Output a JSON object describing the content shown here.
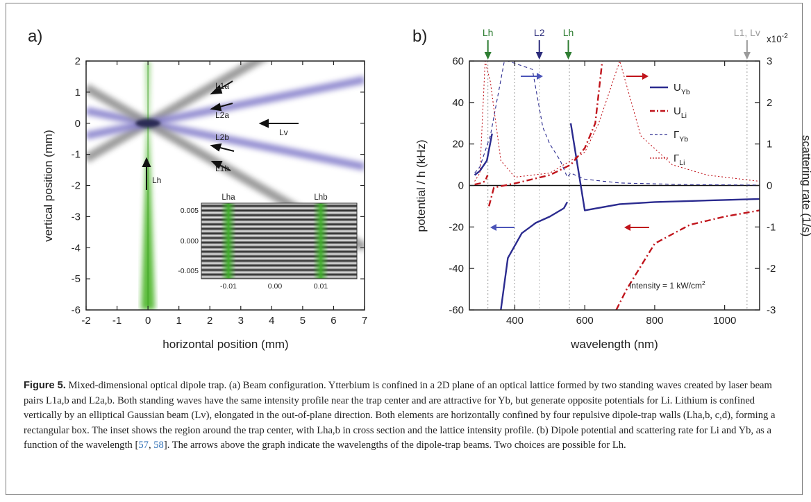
{
  "panel_a": {
    "label": "a)",
    "xlabel": "horizontal position (mm)",
    "ylabel": "vertical position (mm)",
    "xticks": [
      "-2",
      "-1",
      "0",
      "1",
      "2",
      "3",
      "4",
      "5",
      "6",
      "7"
    ],
    "yticks": [
      "2",
      "1",
      "0",
      "-1",
      "-2",
      "-3",
      "-4",
      "-5",
      "-6"
    ],
    "beams": [
      {
        "label": "L1a",
        "slope": 0.57,
        "color": "gray"
      },
      {
        "label": "L2a",
        "slope": 0.2,
        "color": "blue"
      },
      {
        "label": "Lv",
        "slope": 0.0,
        "color": "gray"
      },
      {
        "label": "L2b",
        "slope": -0.2,
        "color": "blue"
      },
      {
        "label": "L1b",
        "slope": -0.57,
        "color": "gray"
      },
      {
        "label": "Lh",
        "slope": null,
        "color": "green"
      }
    ],
    "inset": {
      "labels": [
        "Lha",
        "Lhb"
      ],
      "xticks": [
        "-0.01",
        "0.00",
        "0.01"
      ],
      "yticks": [
        "0.005",
        "0.000",
        "-0.005"
      ]
    }
  },
  "panel_b": {
    "label": "b)",
    "xlabel": "wavelength (nm)",
    "ylabel_left": "potential / h (kHz)",
    "ylabel_right": "scattering rate (1/s)",
    "right_scale": "x10",
    "right_scale_exp": "-2",
    "top_markers": [
      {
        "label": "Lh",
        "wavelength": 323,
        "color": "#2e7d32"
      },
      {
        "label": "L2",
        "wavelength": 470,
        "color": "#2b2b7a"
      },
      {
        "label": "Lh",
        "wavelength": 553,
        "color": "#2e7d32"
      },
      {
        "label": "L1, Lv",
        "wavelength": 1064,
        "color": "#9a9a9a"
      }
    ],
    "legend": [
      {
        "main": "U",
        "sub": "Yb",
        "color": "#2b2b8f",
        "style": "solid"
      },
      {
        "main": "U",
        "sub": "Li",
        "color": "#c0141b",
        "style": "dashdot"
      },
      {
        "main": "Γ",
        "sub": "Yb",
        "color": "#2b2b8f",
        "style": "dash"
      },
      {
        "main": "Γ",
        "sub": "Li",
        "color": "#c0141b",
        "style": "dot"
      }
    ],
    "annotation_main": "Intensity = 1 kW/cm",
    "annotation_sup": "2",
    "xticks": [
      "400",
      "600",
      "800",
      "1000"
    ],
    "yticks_left": [
      "60",
      "40",
      "20",
      "0",
      "-20",
      "-40",
      "-60"
    ],
    "yticks_right": [
      "3",
      "2",
      "1",
      "0",
      "-1",
      "-2",
      "-3"
    ]
  },
  "chart_data": {
    "type": "line",
    "xlabel": "wavelength (nm)",
    "ylabel": "potential / h (kHz)",
    "xlim": [
      270,
      1100
    ],
    "ylim": [
      -60,
      60
    ],
    "y2lim": [
      -3,
      3
    ],
    "y2_scale": "x10^-2",
    "resonances_nm": {
      "Yb": [
        399,
        556
      ],
      "Li": [
        323,
        671
      ]
    },
    "series": [
      {
        "name": "U_Yb",
        "axis": "left",
        "x": [
          285,
          300,
          320,
          335,
          360,
          380,
          420,
          460,
          500,
          540,
          550,
          560,
          600,
          700,
          800,
          900,
          1000,
          1100
        ],
        "y": [
          5,
          7,
          12,
          25,
          -60,
          -35,
          -23,
          -18,
          -15,
          -11,
          -8,
          30,
          -12,
          -9,
          -8,
          -7.5,
          -7,
          -6.5
        ]
      },
      {
        "name": "U_Li",
        "axis": "left",
        "x": [
          285,
          300,
          315,
          322,
          326,
          340,
          400,
          500,
          560,
          600,
          630,
          650,
          690,
          720,
          800,
          900,
          1000,
          1100
        ],
        "y": [
          0.5,
          1,
          2,
          5,
          -10,
          -1,
          1,
          5,
          10,
          18,
          30,
          60,
          -60,
          -50,
          -28,
          -19,
          -15,
          -12
        ]
      },
      {
        "name": "Γ_Yb",
        "axis": "right",
        "x": [
          285,
          300,
          330,
          370,
          380,
          450,
          480,
          500,
          530,
          550,
          560,
          600,
          700,
          900,
          1100
        ],
        "y": [
          0.3,
          0.45,
          1.2,
          3,
          3,
          2.8,
          1.4,
          1.0,
          0.6,
          0.2,
          0.3,
          0.15,
          0.06,
          0.02,
          0.01
        ]
      },
      {
        "name": "Γ_Li",
        "axis": "right",
        "x": [
          285,
          300,
          315,
          330,
          360,
          400,
          500,
          600,
          640,
          700,
          760,
          850,
          950,
          1100
        ],
        "y": [
          0.1,
          0.3,
          3,
          2.5,
          0.6,
          0.2,
          0.3,
          0.8,
          1.5,
          3,
          1.2,
          0.5,
          0.25,
          0.1
        ]
      }
    ]
  },
  "caption": {
    "figure": "Figure 5.",
    "text1": " Mixed-dimensional optical dipole trap. (a) Beam configuration. Ytterbium is confined in a 2D plane of an optical lattice formed by two standing waves created by laser beam pairs L1a,b and L2a,b. Both standing waves have the same intensity profile near the trap center and are attractive for Yb, but generate opposite potentials for Li. Lithium is confined vertically by an elliptical Gaussian beam (Lv), elongated in the out-of-plane direction. Both elements are horizontally confined by four repulsive dipole-trap walls (Lha,b, c,d), forming a rectangular box. The inset shows the region around the trap center, with Lha,b in cross section and the lattice intensity profile. (b) Dipole potential and scattering rate for Li and Yb, as a function of the wavelength [",
    "ref1": "57",
    "sep": ", ",
    "ref2": "58",
    "text2": "]. The arrows above the graph indicate the wavelengths of the dipole-trap beams. Two choices are possible for Lh."
  }
}
